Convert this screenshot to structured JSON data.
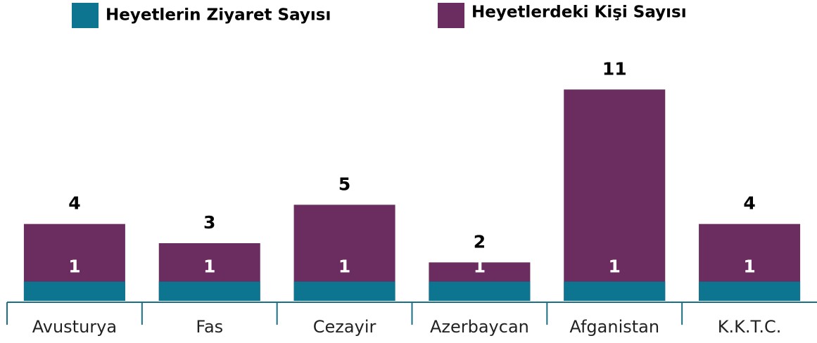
{
  "chart_data": {
    "type": "bar",
    "categories": [
      "Avusturya",
      "Fas",
      "Cezayir",
      "Azerbaycan",
      "Afganistan",
      "K.K.T.C."
    ],
    "series": [
      {
        "name": "Heyetlerin Ziyaret Sayısı",
        "color": "#0e7590",
        "values": [
          1,
          1,
          1,
          1,
          1,
          1
        ]
      },
      {
        "name": "Heyetlerdeki Kişi Sayısı",
        "color": "#6b2c5f",
        "values": [
          4,
          3,
          5,
          2,
          11,
          4
        ]
      }
    ],
    "ylim": [
      0,
      12
    ]
  }
}
